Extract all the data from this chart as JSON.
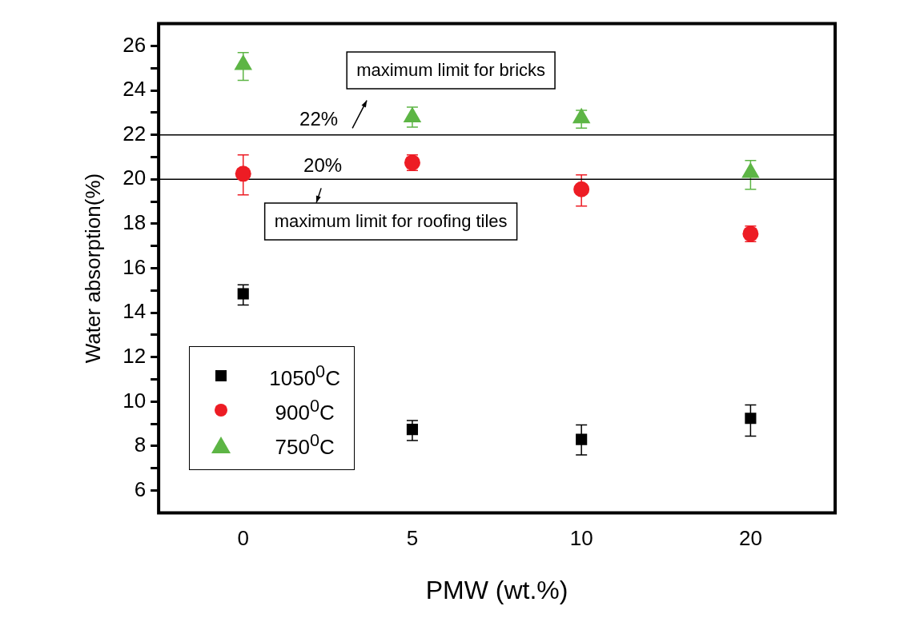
{
  "chart_data": {
    "type": "scatter",
    "xlabel": "PMW (wt.%)",
    "ylabel": "Water absorption(%)",
    "categories": [
      "0",
      "5",
      "10",
      "20"
    ],
    "ylim": [
      5,
      27
    ],
    "yticks": [
      6,
      {
        "value": 7,
        "label": null
      },
      8,
      {
        "value": 9,
        "label": null
      },
      10,
      {
        "value": 11,
        "label": null
      },
      12,
      {
        "value": 13,
        "label": null
      },
      14,
      {
        "value": 15,
        "label": null
      },
      16,
      {
        "value": 17,
        "label": null
      },
      18,
      {
        "value": 19,
        "label": null
      },
      20,
      {
        "value": 21,
        "label": null
      },
      22,
      {
        "value": 23,
        "label": null
      },
      24,
      {
        "value": 25,
        "label": null
      },
      26
    ],
    "series": [
      {
        "name": "1050$^{0}$C",
        "color": "#000000",
        "marker": "square",
        "values": [
          14.85,
          8.75,
          8.3,
          9.25
        ],
        "errors": [
          [
            14.35,
            15.25
          ],
          [
            8.25,
            9.15
          ],
          [
            7.6,
            8.95
          ],
          [
            8.45,
            9.85
          ]
        ]
      },
      {
        "name": "900$^{0}$C",
        "color": "#ed1c24",
        "marker": "circle",
        "values": [
          20.25,
          20.75,
          19.55,
          17.55
        ],
        "errors": [
          [
            19.3,
            21.1
          ],
          [
            20.4,
            21.1
          ],
          [
            18.8,
            20.2
          ],
          [
            17.2,
            17.9
          ]
        ]
      },
      {
        "name": "750$^{0}$C",
        "color": "#5db545",
        "marker": "triangle",
        "values": [
          25.15,
          22.8,
          22.75,
          20.3
        ],
        "errors": [
          [
            24.45,
            25.7
          ],
          [
            22.35,
            23.25
          ],
          [
            22.3,
            23.1
          ],
          [
            19.55,
            20.85
          ]
        ]
      }
    ],
    "ref_lines": [
      {
        "axis": "y",
        "value": 22,
        "label": "22%",
        "color": "#000000"
      },
      {
        "axis": "y",
        "value": 20,
        "label": "20%",
        "color": "#000000"
      }
    ],
    "annotations": [
      "maximum limit for bricks",
      "maximum limit for roofing tiles"
    ],
    "legend": "bottom left",
    "grid": false
  }
}
